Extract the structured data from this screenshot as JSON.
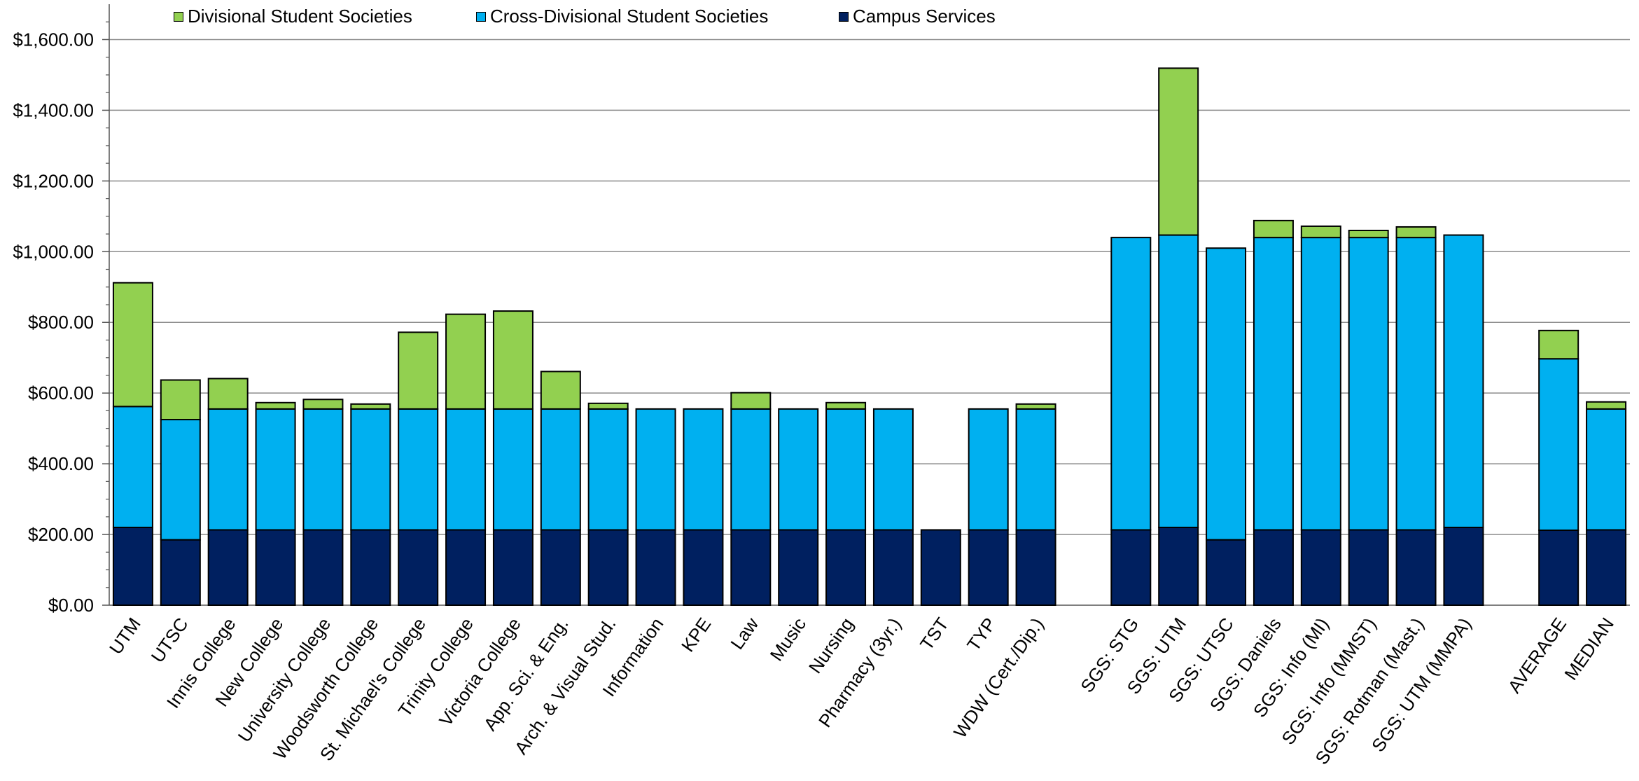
{
  "chart_data": {
    "type": "bar",
    "stacked": true,
    "categories": [
      "UTM",
      "UTSC",
      "Innis College",
      "New College",
      "University College",
      "Woodsworth College",
      "St. Michael's College",
      "Trinity College",
      "Victoria College",
      "App. Sci. & Eng.",
      "Arch. & Visual Stud.",
      "Information",
      "KPE",
      "Law",
      "Music",
      "Nursing",
      "Pharmacy (3yr.)",
      "TST",
      "TYP",
      "WDW (Cert./Dip.)",
      "",
      "SGS: STG",
      "SGS: UTM",
      "SGS: UTSC",
      "SGS: Daniels",
      "SGS: Info (MI)",
      "SGS: Info (MMST)",
      "SGS: Rotman (Mast.)",
      "SGS: UTM (MMPA)",
      "",
      "AVERAGE",
      "MEDIAN"
    ],
    "series": [
      {
        "name": "Campus Services",
        "color": "#002060",
        "values": [
          220,
          185,
          213,
          213,
          213,
          213,
          213,
          213,
          213,
          213,
          213,
          213,
          213,
          213,
          213,
          213,
          213,
          213,
          213,
          213,
          null,
          213,
          220,
          185,
          213,
          213,
          213,
          213,
          220,
          null,
          212,
          213
        ]
      },
      {
        "name": "Cross-Divisional Student Societies",
        "color": "#00B0F0",
        "values": [
          342,
          340,
          342,
          342,
          342,
          342,
          342,
          342,
          342,
          342,
          342,
          342,
          342,
          342,
          342,
          342,
          342,
          0,
          342,
          342,
          null,
          827,
          827,
          825,
          827,
          827,
          827,
          827,
          827,
          null,
          485,
          342
        ]
      },
      {
        "name": "Divisional Student Societies",
        "color": "#92D050",
        "values": [
          350,
          112,
          86,
          18,
          27,
          14,
          217,
          268,
          277,
          106,
          16,
          0,
          0,
          46,
          0,
          18,
          0,
          0,
          0,
          14,
          null,
          0,
          472,
          0,
          48,
          32,
          20,
          30,
          0,
          null,
          80,
          20
        ]
      }
    ],
    "legend_order": [
      "Divisional Student Societies",
      "Cross-Divisional Student Societies",
      "Campus Services"
    ],
    "legend_position": "top-left",
    "y_ticks": [
      "$0.00",
      "$200.00",
      "$400.00",
      "$600.00",
      "$800.00",
      "$1,000.00",
      "$1,200.00",
      "$1,400.00",
      "$1,600.00"
    ],
    "ylim": [
      0,
      1700
    ],
    "y_major_step": 200,
    "y_minor_step": 50,
    "grid": true,
    "title": "",
    "xlabel": "",
    "ylabel": ""
  }
}
